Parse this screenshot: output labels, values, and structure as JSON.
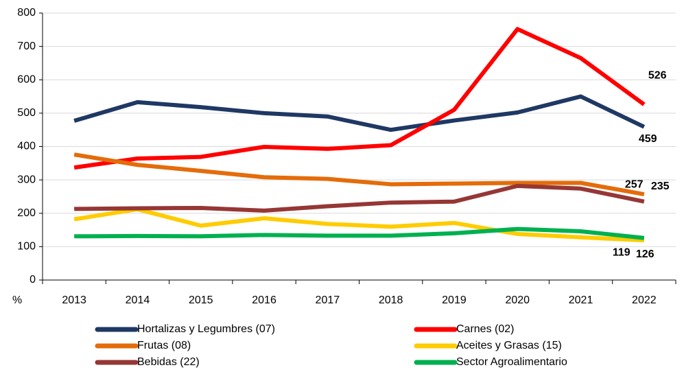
{
  "chart_data": {
    "type": "line",
    "y_unit_label": "%",
    "categories": [
      "2013",
      "2014",
      "2015",
      "2016",
      "2017",
      "2018",
      "2019",
      "2020",
      "2021",
      "2022"
    ],
    "ylim": [
      0,
      800
    ],
    "yticks": [
      0,
      100,
      200,
      300,
      400,
      500,
      600,
      700,
      800
    ],
    "grid": true,
    "last_value_labels": true,
    "series": [
      {
        "name": "Hortalizas y Legumbres (07)",
        "color": "#1f3864",
        "values": [
          477,
          533,
          518,
          500,
          490,
          450,
          478,
          502,
          550,
          459
        ]
      },
      {
        "name": "Carnes (02)",
        "color": "#ff0000",
        "values": [
          337,
          364,
          369,
          399,
          393,
          404,
          510,
          752,
          665,
          526
        ]
      },
      {
        "name": "Frutas  (08)",
        "color": "#e46c0a",
        "values": [
          376,
          345,
          327,
          308,
          303,
          287,
          289,
          291,
          291,
          257
        ]
      },
      {
        "name": "Aceites y Grasas (15)",
        "color": "#ffcc00",
        "values": [
          182,
          212,
          163,
          185,
          168,
          160,
          171,
          138,
          128,
          119
        ]
      },
      {
        "name": "Bebidas (22)",
        "color": "#953735",
        "values": [
          213,
          215,
          216,
          208,
          221,
          232,
          235,
          282,
          274,
          235
        ]
      },
      {
        "name": "Sector Agroalimentario",
        "color": "#00b050",
        "values": [
          131,
          132,
          131,
          135,
          133,
          133,
          140,
          153,
          146,
          126
        ]
      }
    ]
  }
}
